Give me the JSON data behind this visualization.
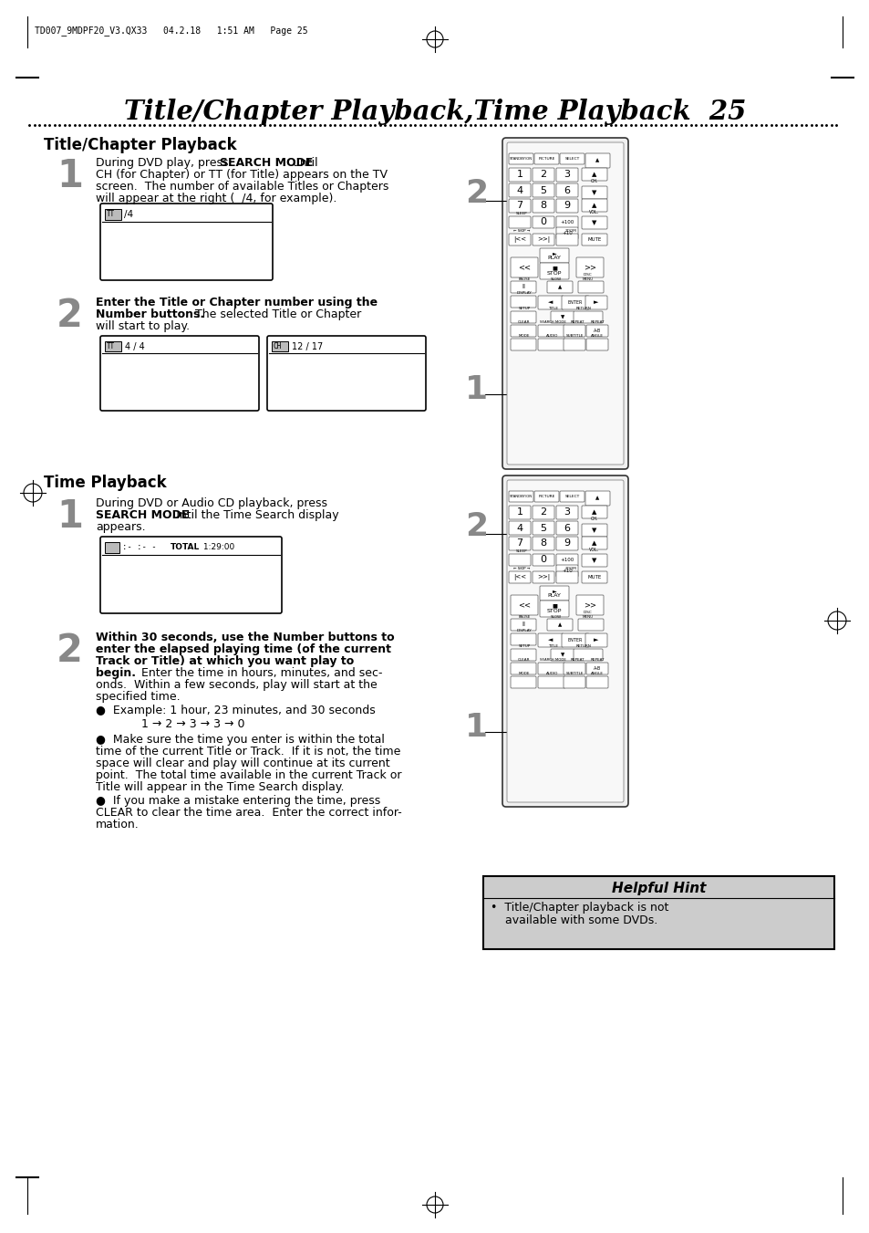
{
  "page_bg": "#ffffff",
  "header_text": "TD007_9MDPF20_V3.QX33   04.2.18   1:51 AM   Page 25",
  "title": "Title/Chapter Playback,Time Playback  25",
  "section1_title": "Title/Chapter Playback",
  "section2_title": "Time Playback",
  "hint_title": "Helpful Hint",
  "hint_text": "•  Title/Chapter playback is not\n    available with some DVDs.",
  "text_color": "#000000",
  "hint_bg": "#cccccc",
  "remote_outline": "#333333",
  "remote_body": "#f8f8f8",
  "remote_button": "#ffffff",
  "step_num_color": "#888888"
}
